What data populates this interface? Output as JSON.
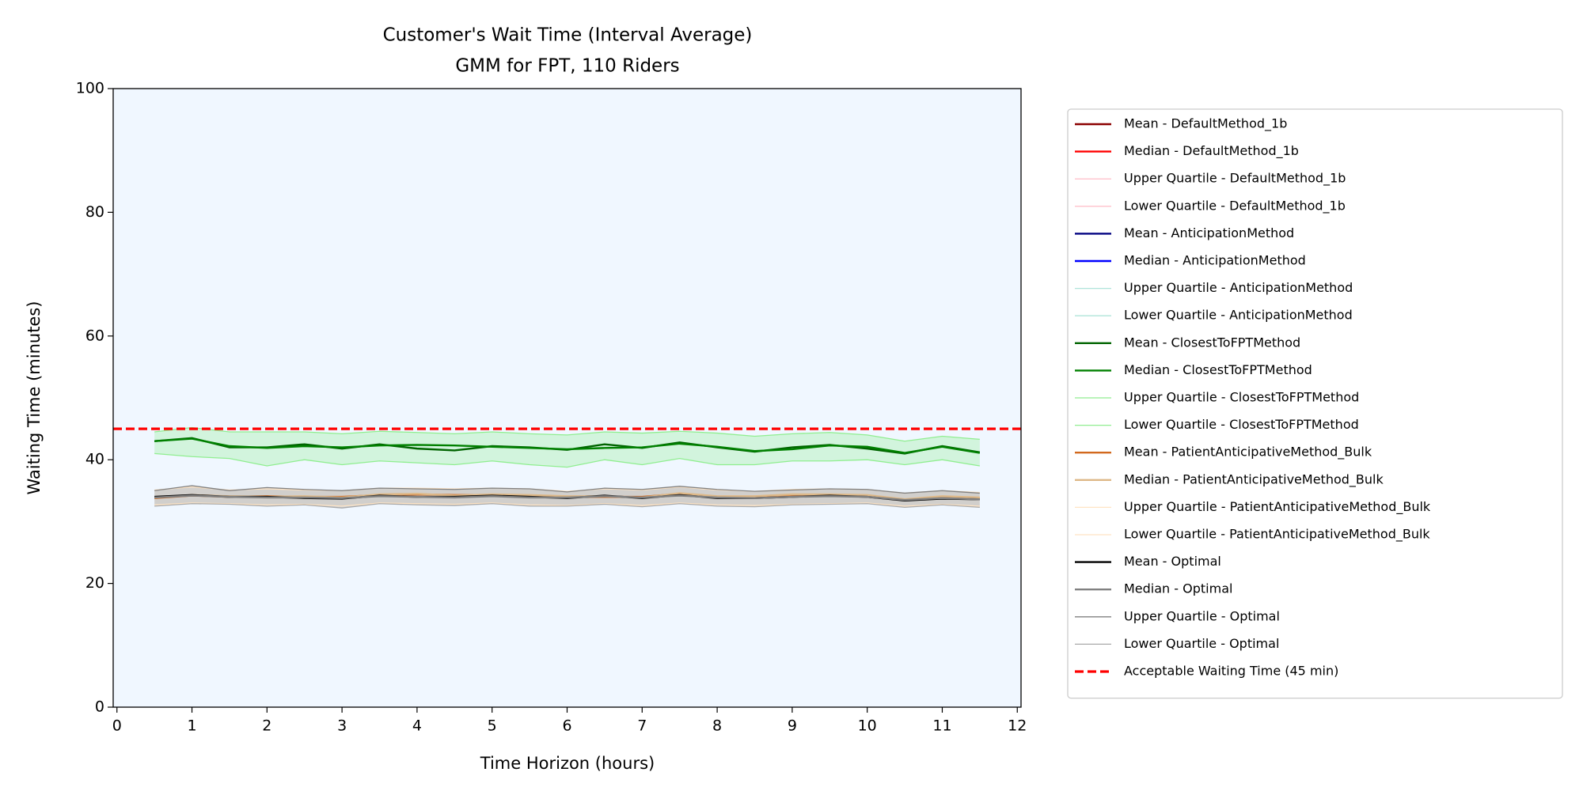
{
  "chart_data": {
    "type": "line",
    "title": "Customer's Wait Time (Interval Average)",
    "subtitle": "GMM for FPT, 110 Riders",
    "x_label": "Time Horizon (hours)",
    "y_label": "Waiting Time (minutes)",
    "x": [
      0.5,
      1,
      1.5,
      2,
      2.5,
      3,
      3.5,
      4,
      4.5,
      5,
      5.5,
      6,
      6.5,
      7,
      7.5,
      8,
      8.5,
      9,
      9.5,
      10,
      10.5,
      11,
      11.5
    ],
    "xlim": [
      -0.05,
      12.05
    ],
    "xticks": [
      0,
      1,
      2,
      3,
      4,
      5,
      6,
      7,
      8,
      9,
      10,
      11,
      12
    ],
    "ylim": [
      0,
      100
    ],
    "yticks": [
      0,
      20,
      40,
      60,
      80,
      100
    ],
    "background": "#f0f7ff",
    "legend": "outside right",
    "series": [
      {
        "name": "Mean - DefaultMethod_1b",
        "color": "#8b0000",
        "linewidth": 1.5,
        "values": [
          null,
          null,
          null,
          null,
          null,
          null,
          null,
          null,
          null,
          null,
          null,
          null,
          null,
          null,
          null,
          null,
          null,
          null,
          null,
          null,
          null,
          null,
          null
        ]
      },
      {
        "name": "Median - DefaultMethod_1b",
        "color": "#ff0000",
        "linewidth": 1.5,
        "values": [
          null,
          null,
          null,
          null,
          null,
          null,
          null,
          null,
          null,
          null,
          null,
          null,
          null,
          null,
          null,
          null,
          null,
          null,
          null,
          null,
          null,
          null,
          null
        ]
      },
      {
        "name": "Upper Quartile - DefaultMethod_1b",
        "color": "#ffc0cb",
        "linewidth": 0.8,
        "band_fill": "#ffc0cb",
        "values": [
          null,
          null,
          null,
          null,
          null,
          null,
          null,
          null,
          null,
          null,
          null,
          null,
          null,
          null,
          null,
          null,
          null,
          null,
          null,
          null,
          null,
          null,
          null
        ]
      },
      {
        "name": "Lower Quartile - DefaultMethod_1b",
        "color": "#ffc0cb",
        "linewidth": 0.8,
        "values": [
          null,
          null,
          null,
          null,
          null,
          null,
          null,
          null,
          null,
          null,
          null,
          null,
          null,
          null,
          null,
          null,
          null,
          null,
          null,
          null,
          null,
          null,
          null
        ]
      },
      {
        "name": "Mean - AnticipationMethod",
        "color": "#000080",
        "linewidth": 1.5,
        "values": [
          null,
          null,
          null,
          null,
          null,
          null,
          null,
          null,
          null,
          null,
          null,
          null,
          null,
          null,
          null,
          null,
          null,
          null,
          null,
          null,
          null,
          null,
          null
        ]
      },
      {
        "name": "Median - AnticipationMethod",
        "color": "#0000ff",
        "linewidth": 1.5,
        "values": [
          null,
          null,
          null,
          null,
          null,
          null,
          null,
          null,
          null,
          null,
          null,
          null,
          null,
          null,
          null,
          null,
          null,
          null,
          null,
          null,
          null,
          null,
          null
        ]
      },
      {
        "name": "Upper Quartile - AnticipationMethod",
        "color": "#afe4da",
        "linewidth": 0.8,
        "band_fill": "#afe4da",
        "values": [
          null,
          null,
          null,
          null,
          null,
          null,
          null,
          null,
          null,
          null,
          null,
          null,
          null,
          null,
          null,
          null,
          null,
          null,
          null,
          null,
          null,
          null,
          null
        ]
      },
      {
        "name": "Lower Quartile - AnticipationMethod",
        "color": "#afe4da",
        "linewidth": 0.8,
        "values": [
          null,
          null,
          null,
          null,
          null,
          null,
          null,
          null,
          null,
          null,
          null,
          null,
          null,
          null,
          null,
          null,
          null,
          null,
          null,
          null,
          null,
          null,
          null
        ]
      },
      {
        "name": "Mean - ClosestToFPTMethod",
        "color": "#006400",
        "linewidth": 1.5,
        "values": [
          43,
          43.5,
          42,
          42,
          42.5,
          41.8,
          42.5,
          41.8,
          41.5,
          42.2,
          42,
          41.6,
          42.5,
          41.9,
          42.8,
          42,
          41.3,
          42,
          42.4,
          41.8,
          41,
          42.2,
          41.2
        ]
      },
      {
        "name": "Median - ClosestToFPTMethod",
        "color": "#008000",
        "linewidth": 1.5,
        "values": [
          43,
          43.4,
          42.2,
          41.9,
          42.2,
          42,
          42.3,
          42.4,
          42.3,
          42.1,
          41.9,
          41.7,
          41.9,
          42,
          42.6,
          42.1,
          41.4,
          41.7,
          42.3,
          42.1,
          41.1,
          42.1,
          41.1
        ]
      },
      {
        "name": "Upper Quartile - ClosestToFPTMethod",
        "color": "#90ee90",
        "linewidth": 0.8,
        "band_fill": "#90ee90",
        "values": [
          44.5,
          45.2,
          44.5,
          44.5,
          44.5,
          44.2,
          44.6,
          44.4,
          44.2,
          44.5,
          44.2,
          44,
          44.5,
          44.3,
          44.6,
          44.3,
          43.8,
          44.2,
          44.4,
          44,
          43,
          43.8,
          43.3
        ]
      },
      {
        "name": "Lower Quartile - ClosestToFPTMethod",
        "color": "#90ee90",
        "linewidth": 0.8,
        "values": [
          41,
          40.5,
          40.2,
          39,
          40,
          39.2,
          39.8,
          39.5,
          39.2,
          39.8,
          39.2,
          38.8,
          40,
          39.2,
          40.2,
          39.2,
          39.2,
          39.8,
          39.8,
          40,
          39.2,
          40,
          39
        ]
      },
      {
        "name": "Mean - PatientAnticipativeMethod_Bulk",
        "color": "#d2691e",
        "linewidth": 1.5,
        "values": [
          33.8,
          34.2,
          34,
          34.1,
          34,
          34,
          34.3,
          34.4,
          34.3,
          34.3,
          34.2,
          34,
          34,
          34,
          34.5,
          34,
          34,
          34.2,
          34.3,
          34.2,
          33.5,
          34,
          33.8
        ]
      },
      {
        "name": "Median - PatientAnticipativeMethod_Bulk",
        "color": "#deb887",
        "linewidth": 1.5,
        "values": [
          33.9,
          34.3,
          34.1,
          34,
          34.1,
          33.9,
          34.4,
          34.5,
          34.2,
          34.4,
          34.3,
          34.1,
          34.1,
          33.9,
          34.6,
          34.1,
          34.1,
          34.4,
          34.4,
          34.3,
          33.6,
          34.1,
          33.9
        ]
      },
      {
        "name": "Upper Quartile - PatientAnticipativeMethod_Bulk",
        "color": "#ffe4c4",
        "linewidth": 0.8,
        "band_fill": "#ffe4c4",
        "values": [
          35.1,
          35.6,
          35.1,
          35.3,
          35.1,
          35,
          35.4,
          35.4,
          35.3,
          35.4,
          35.3,
          34.9,
          35.3,
          35.1,
          35.6,
          35.1,
          34.9,
          35.2,
          35.3,
          35.2,
          34.6,
          35,
          34.7
        ]
      },
      {
        "name": "Lower Quartile - PatientAnticipativeMethod_Bulk",
        "color": "#ffe4c4",
        "linewidth": 0.8,
        "values": [
          32.7,
          33,
          32.9,
          32.7,
          32.8,
          32.5,
          33,
          32.9,
          32.8,
          33,
          32.7,
          32.6,
          32.9,
          32.6,
          33,
          32.7,
          32.6,
          32.8,
          32.9,
          33,
          32.5,
          32.8,
          32.5
        ]
      },
      {
        "name": "Mean - Optimal",
        "color": "#000000",
        "linewidth": 1.5,
        "values": [
          34,
          34.3,
          34,
          34,
          33.8,
          33.7,
          34.2,
          34,
          34,
          34.2,
          34,
          33.8,
          34.2,
          33.8,
          34.3,
          33.8,
          33.8,
          34,
          34.2,
          34,
          33.4,
          33.7,
          33.6
        ]
      },
      {
        "name": "Median - Optimal",
        "color": "#808080",
        "linewidth": 1.5,
        "values": [
          33.9,
          34.2,
          34,
          33.9,
          33.9,
          33.8,
          34.1,
          34,
          33.9,
          34.1,
          33.9,
          33.9,
          34.1,
          33.9,
          34.2,
          33.9,
          33.8,
          34,
          34.1,
          34,
          33.5,
          33.8,
          33.6
        ]
      },
      {
        "name": "Upper Quartile - Optimal",
        "color": "#808080",
        "linewidth": 0.8,
        "band_fill": "#808080",
        "values": [
          35,
          35.8,
          35,
          35.5,
          35.2,
          35,
          35.4,
          35.3,
          35.2,
          35.4,
          35.3,
          34.8,
          35.4,
          35.2,
          35.7,
          35.2,
          34.9,
          35.1,
          35.3,
          35.2,
          34.6,
          35,
          34.6
        ]
      },
      {
        "name": "Lower Quartile - Optimal",
        "color": "#a9a9a9",
        "linewidth": 0.8,
        "values": [
          32.5,
          32.9,
          32.8,
          32.5,
          32.7,
          32.2,
          32.9,
          32.7,
          32.6,
          32.9,
          32.5,
          32.5,
          32.8,
          32.4,
          32.9,
          32.5,
          32.4,
          32.7,
          32.8,
          32.9,
          32.3,
          32.7,
          32.3
        ]
      }
    ],
    "reference_line": {
      "name": "Acceptable Waiting Time (45 min)",
      "value": 45,
      "color": "#ff0000",
      "dashed": true
    }
  }
}
